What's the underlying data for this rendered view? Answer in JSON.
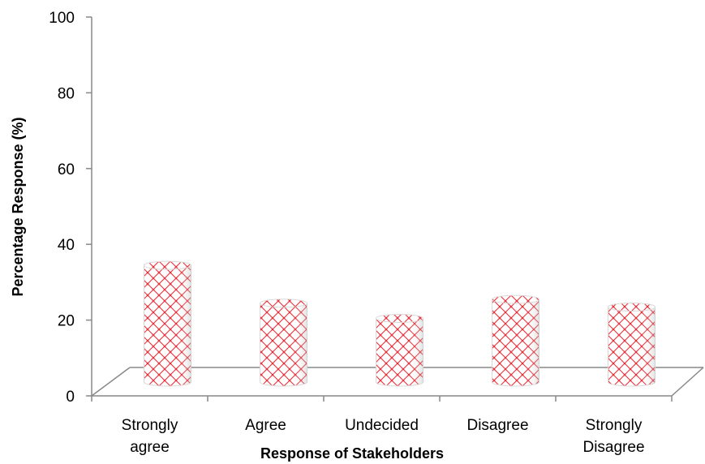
{
  "chart_data": {
    "type": "bar",
    "style": "3d-cylinder",
    "categories": [
      [
        "Strongly",
        "agree"
      ],
      [
        "Agree"
      ],
      [
        "Undecided"
      ],
      [
        "Disagree"
      ],
      [
        "Strongly",
        "Disagree"
      ]
    ],
    "values": [
      29,
      19,
      15,
      20,
      18
    ],
    "xlabel": "Response of Stakeholders",
    "ylabel": "Percentage Response (%)",
    "ylim": [
      0,
      100
    ],
    "yticks": [
      0,
      20,
      40,
      60,
      80,
      100
    ],
    "grid": false,
    "legend": "none",
    "colors": {
      "pattern": "#e8323c",
      "fill": "#ffffff",
      "axis": "#888888",
      "text": "#000000"
    }
  }
}
